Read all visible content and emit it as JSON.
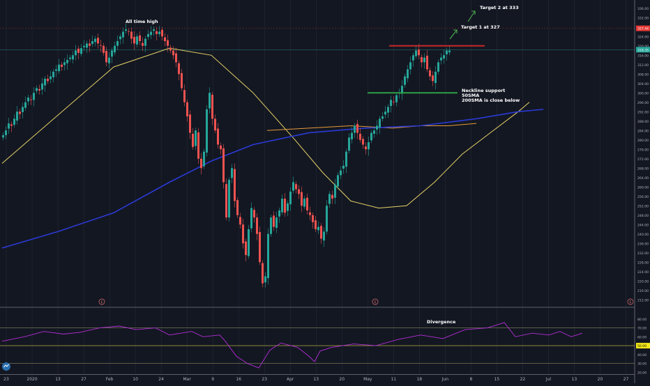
{
  "colors": {
    "background": "#131722",
    "up": "#26a69a",
    "down": "#ef5350",
    "sma50": "#e6d266",
    "sma100": "#e69b3a",
    "sma200": "#2b3ad6",
    "rsi": "#b42dd8",
    "resistance": "#c62828",
    "support": "#2ea043",
    "arrow": "#4caf50",
    "grid": "#2a2e39",
    "axis_text": "#b2b5be"
  },
  "annotations": {
    "all_time_high": "All time high",
    "target_1": "Target 1 at 327",
    "target_2": "Target 2 at 333",
    "neckline_line1": "Neckline support",
    "neckline_line2": "50SMA",
    "neckline_line3": "200SMA is close below",
    "divergence": "Divergence"
  },
  "price_axis": {
    "ticks": [
      "336.00",
      "332.00",
      "327.44",
      "324.00",
      "320.00",
      "318.35",
      "316.00",
      "312.00",
      "308.00",
      "304.00",
      "300.00",
      "296.00",
      "292.00",
      "288.00",
      "284.00",
      "280.00",
      "276.00",
      "272.00",
      "268.00",
      "264.00",
      "260.00",
      "256.00",
      "252.00",
      "248.00",
      "244.00",
      "240.00",
      "236.00",
      "232.00",
      "228.00",
      "224.00",
      "220.00",
      "216.00",
      "212.00"
    ],
    "marker_high": "327.44",
    "marker_last": "318.35"
  },
  "rsi_axis": {
    "ticks": [
      "80.00",
      "70.00",
      "60.00",
      "40.00",
      "30.00",
      "20.00"
    ],
    "marker": "50.00"
  },
  "time_axis": {
    "labels": [
      "23",
      "2020",
      "13",
      "27",
      "Feb",
      "10",
      "24",
      "Mar",
      "9",
      "16",
      "23",
      "Apr",
      "13",
      "20",
      "May",
      "11",
      "18",
      "Jun",
      "8",
      "15",
      "22",
      "Jul",
      "13",
      "20",
      "27"
    ]
  },
  "event_markers": [
    "E",
    "E",
    "E"
  ],
  "chart_data": [
    {
      "type": "candlestick",
      "title": "",
      "ylim": [
        210,
        338
      ],
      "x_labels": [
        "23",
        "2020",
        "13",
        "27",
        "Feb",
        "10",
        "24",
        "Mar",
        "9",
        "16",
        "23",
        "Apr",
        "13",
        "20",
        "May",
        "11",
        "18",
        "Jun",
        "8",
        "15",
        "22",
        "Jul",
        "13",
        "20",
        "27"
      ],
      "close_series": [
        282,
        284,
        287,
        286,
        289,
        292,
        291,
        294,
        296,
        298,
        297,
        300,
        302,
        301,
        304,
        306,
        305,
        307,
        309,
        310,
        312,
        311,
        313,
        314,
        315,
        316,
        318,
        317,
        319,
        320,
        321,
        320,
        322,
        323,
        321,
        320,
        317,
        313,
        315,
        318,
        320,
        322,
        324,
        326,
        327,
        326,
        323,
        321,
        324,
        322,
        320,
        323,
        325,
        326,
        327,
        325,
        326,
        324,
        322,
        320,
        318,
        316,
        313,
        308,
        302,
        296,
        290,
        283,
        277,
        284,
        272,
        268,
        275,
        293,
        300,
        289,
        284,
        278,
        276,
        262,
        247,
        263,
        268,
        254,
        248,
        244,
        236,
        231,
        242,
        251,
        247,
        240,
        228,
        219,
        222,
        240,
        247,
        243,
        247,
        250,
        255,
        249,
        253,
        258,
        262,
        259,
        257,
        252,
        255,
        250,
        248,
        245,
        242,
        243,
        238,
        241,
        252,
        257,
        255,
        261,
        265,
        267,
        269,
        275,
        281,
        283,
        286,
        283,
        280,
        278,
        276,
        279,
        283,
        284,
        286,
        289,
        290,
        292,
        294,
        297,
        296,
        299,
        300,
        303,
        307,
        310,
        313,
        316,
        318,
        316,
        313,
        315,
        310,
        307,
        305,
        309,
        313,
        315,
        316,
        318,
        318
      ],
      "moving_averages": [
        {
          "name": "50SMA",
          "values": [
            [
              0,
              270
            ],
            [
              40,
              311
            ],
            [
              60,
              319
            ],
            [
              75,
              316
            ],
            [
              90,
              300
            ],
            [
              105,
              280
            ],
            [
              115,
              266
            ],
            [
              125,
              254
            ],
            [
              135,
              251
            ],
            [
              145,
              252
            ],
            [
              155,
              262
            ],
            [
              165,
              274
            ],
            [
              175,
              283
            ],
            [
              185,
              292
            ],
            [
              189,
              296
            ]
          ]
        },
        {
          "name": "100SMA",
          "values": [
            [
              95,
              284
            ],
            [
              110,
              285
            ],
            [
              125,
              286
            ],
            [
              140,
              285
            ],
            [
              150,
              286
            ],
            [
              160,
              286
            ],
            [
              170,
              287
            ]
          ]
        },
        {
          "name": "200SMA",
          "values": [
            [
              0,
              234
            ],
            [
              20,
              241
            ],
            [
              40,
              249
            ],
            [
              60,
              262
            ],
            [
              75,
              271
            ],
            [
              90,
              278
            ],
            [
              110,
              283
            ],
            [
              130,
              285
            ],
            [
              150,
              286
            ],
            [
              170,
              289
            ],
            [
              185,
              292
            ],
            [
              194,
              293
            ]
          ]
        }
      ],
      "levels": [
        {
          "label": "resistance",
          "value": 320
        },
        {
          "label": "neckline",
          "value": 300
        }
      ]
    },
    {
      "type": "line",
      "title": "RSI",
      "ylim": [
        18,
        90
      ],
      "guides": [
        70,
        50,
        30
      ],
      "series": [
        {
          "values": [
            [
              0,
              55
            ],
            [
              8,
              60
            ],
            [
              15,
              66
            ],
            [
              22,
              63
            ],
            [
              28,
              65
            ],
            [
              35,
              70
            ],
            [
              42,
              72
            ],
            [
              48,
              68
            ],
            [
              55,
              70
            ],
            [
              60,
              62
            ],
            [
              68,
              66
            ],
            [
              72,
              60
            ],
            [
              78,
              62
            ],
            [
              80,
              55
            ],
            [
              84,
              38
            ],
            [
              88,
              30
            ],
            [
              92,
              25
            ],
            [
              96,
              45
            ],
            [
              100,
              53
            ],
            [
              106,
              48
            ],
            [
              110,
              38
            ],
            [
              112,
              32
            ],
            [
              114,
              44
            ],
            [
              118,
              48
            ],
            [
              126,
              52
            ],
            [
              134,
              50
            ],
            [
              142,
              57
            ],
            [
              150,
              62
            ],
            [
              158,
              58
            ],
            [
              166,
              68
            ],
            [
              174,
              70
            ],
            [
              180,
              76
            ],
            [
              184,
              60
            ],
            [
              190,
              64
            ],
            [
              196,
              62
            ],
            [
              200,
              66
            ],
            [
              204,
              60
            ],
            [
              208,
              64
            ]
          ]
        }
      ]
    }
  ]
}
